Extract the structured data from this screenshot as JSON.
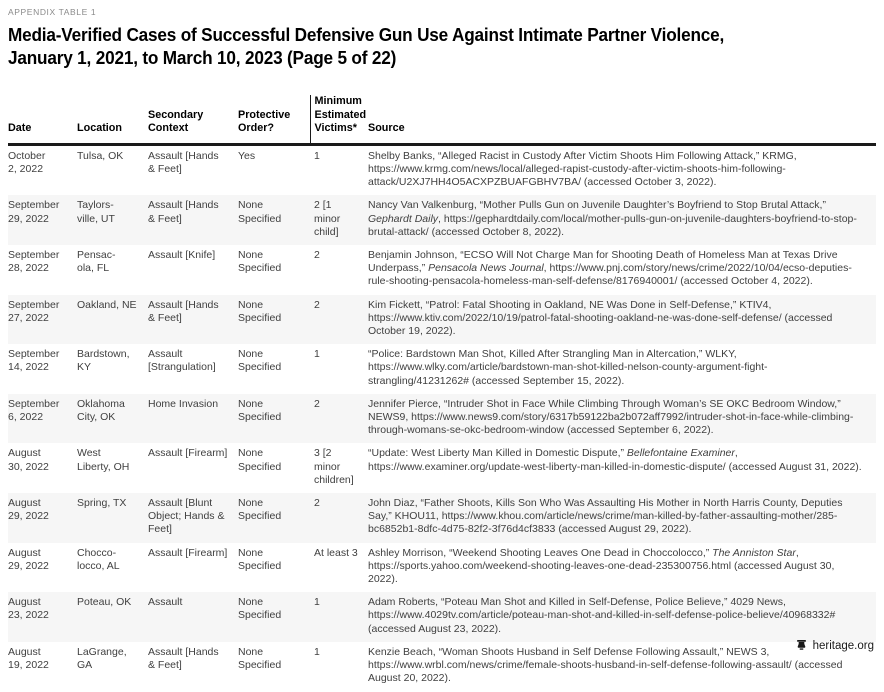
{
  "page": {
    "kicker": "APPENDIX TABLE 1",
    "title_line1": "Media-Verified Cases of Successful Defensive Gun Use Against Intimate Partner Violence,",
    "title_line2": "January 1, 2021, to March 10, 2023 (Page 5 of 22)",
    "footer": {
      "site": "heritage.org",
      "icon": "liberty-bell-icon"
    },
    "colors": {
      "header_rule": "#1a1a1a",
      "row_stripe": "#f6f6f6",
      "kicker_gray": "#8a8a8a",
      "text": "#404040"
    }
  },
  "table": {
    "columns": [
      "Date",
      "Location",
      "Secondary Context",
      "Protective Order?",
      "Minimum Estimated Victims*",
      "Source"
    ],
    "rows": [
      {
        "date": "October\n2, 2022",
        "location": "Tulsa, OK",
        "context": "Assault [Hands & Feet]",
        "order": "Yes",
        "victims": "1",
        "source": [
          {
            "t": "Shelby Banks, “Alleged Racist in Custody After Victim Shoots Him Following Attack,” KRMG, https://www.krmg.com/news/local/alleged-rapist-custody-after-victim-shoots-him-following-attack/U2XJ7HH4O5ACXPZBUAFGBHV7BA/ (accessed October 3, 2022)."
          }
        ]
      },
      {
        "date": "September\n29, 2022",
        "location": "Taylors-\nville, UT",
        "context": "Assault [Hands & Feet]",
        "order": "None Specified",
        "victims": "2 [1 minor child]",
        "source": [
          {
            "t": "Nancy Van Valkenburg, “Mother Pulls Gun on Juvenile Daughter’s Boyfriend to Stop Brutal Attack,” "
          },
          {
            "t": "Gephardt Daily",
            "i": true
          },
          {
            "t": ", https://gephardtdaily.com/local/mother-pulls-gun-on-juvenile-daughters-boyfriend-to-stop-brutal-attack/ (accessed October 8, 2022)."
          }
        ]
      },
      {
        "date": "September\n28, 2022",
        "location": "Pensac-\nola, FL",
        "context": "Assault [Knife]",
        "order": "None Specified",
        "victims": "2",
        "source": [
          {
            "t": "Benjamin Johnson, “ECSO Will Not Charge Man for Shooting Death of Homeless Man at Texas Drive Underpass,” "
          },
          {
            "t": "Pensacola News Journal",
            "i": true
          },
          {
            "t": ", https://www.pnj.com/story/news/crime/2022/10/04/ecso-deputies-rule-shooting-pensacola-homeless-man-self-defense/8176940001/ (accessed October 4, 2022)."
          }
        ]
      },
      {
        "date": "September\n27, 2022",
        "location": "Oakland, NE",
        "context": "Assault [Hands & Feet]",
        "order": "None Specified",
        "victims": "2",
        "source": [
          {
            "t": "Kim Fickett, “Patrol: Fatal Shooting in Oakland, NE Was Done in Self-Defense,” KTIV4, https://www.ktiv.com/2022/10/19/patrol-fatal-shooting-oakland-ne-was-done-self-defense/ (accessed October 19, 2022)."
          }
        ]
      },
      {
        "date": "September\n14, 2022",
        "location": "Bardstown,\nKY",
        "context": "Assault [Strangulation]",
        "order": "None Specified",
        "victims": "1",
        "source": [
          {
            "t": "“Police: Bardstown Man Shot, Killed After Strangling Man in Altercation,” WLKY, https://www.wlky.com/article/bardstown-man-shot-killed-nelson-county-argument-fight-strangling/41231262# (accessed September 15, 2022)."
          }
        ]
      },
      {
        "date": "September\n6, 2022",
        "location": "Oklahoma\nCity, OK",
        "context": "Home Invasion",
        "order": "None Specified",
        "victims": "2",
        "source": [
          {
            "t": "Jennifer Pierce, “Intruder Shot in Face While Climbing Through Woman’s SE OKC Bedroom Window,” NEWS9, https://www.news9.com/story/6317b59122ba2b072aff7992/intruder-shot-in-face-while-climbing-through-womans-se-okc-bedroom-window (accessed September 6, 2022)."
          }
        ]
      },
      {
        "date": "August\n30, 2022",
        "location": "West\nLiberty, OH",
        "context": "Assault [Firearm]",
        "order": "None Specified",
        "victims": "3 [2 minor children]",
        "source": [
          {
            "t": "“Update: West Liberty Man Killed in Domestic Dispute,” "
          },
          {
            "t": "Bellefontaine Examiner",
            "i": true
          },
          {
            "t": ", https://www.examiner.org/update-west-liberty-man-killed-in-domestic-dispute/ (accessed August 31, 2022)."
          }
        ]
      },
      {
        "date": "August\n29, 2022",
        "location": "Spring, TX",
        "context": "Assault [Blunt Object; Hands & Feet]",
        "order": "None Specified",
        "victims": "2",
        "source": [
          {
            "t": "John Diaz, “Father Shoots, Kills Son Who Was Assaulting His Mother in North Harris County, Deputies Say,” KHOU11, https://www.khou.com/article/news/crime/man-killed-by-father-assaulting-mother/285-bc6852b1-8dfc-4d75-82f2-3f76d4cf3833 (accessed August 29, 2022)."
          }
        ]
      },
      {
        "date": "August\n29, 2022",
        "location": "Chocco-\nlocco, AL",
        "context": "Assault [Firearm]",
        "order": "None Specified",
        "victims": "At least 3",
        "source": [
          {
            "t": "Ashley Morrison, “Weekend Shooting Leaves One Dead in Choccolocco,” "
          },
          {
            "t": "The Anniston Star",
            "i": true
          },
          {
            "t": ", https://sports.yahoo.com/weekend-shooting-leaves-one-dead-235300756.html (accessed August 30, 2022)."
          }
        ]
      },
      {
        "date": "August\n23, 2022",
        "location": "Poteau, OK",
        "context": "Assault",
        "order": "None Specified",
        "victims": "1",
        "source": [
          {
            "t": "Adam Roberts, “Poteau Man Shot and Killed in Self-Defense, Police Believe,” 4029 News, https://www.4029tv.com/article/poteau-man-shot-and-killed-in-self-defense-police-believe/40968332# (accessed August 23, 2022)."
          }
        ]
      },
      {
        "date": "August\n19, 2022",
        "location": "LaGrange,\nGA",
        "context": "Assault [Hands & Feet]",
        "order": "None Specified",
        "victims": "1",
        "source": [
          {
            "t": "Kenzie Beach, “Woman Shoots Husband in Self Defense Following Assault,” NEWS 3, https://www.wrbl.com/news/crime/female-shoots-husband-in-self-defense-following-assault/ (accessed August 20, 2022)."
          }
        ]
      }
    ]
  }
}
